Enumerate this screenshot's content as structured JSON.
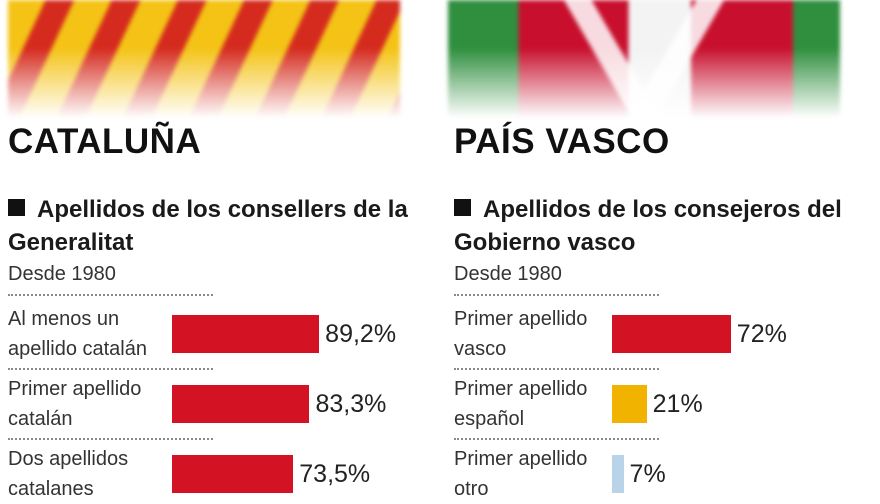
{
  "colors": {
    "catalan": "#d31224",
    "vasco": "#d31224",
    "espanol": "#f2b200",
    "otro": "#b9d4e8"
  },
  "left": {
    "region": "CATALUÑA",
    "subtitle": "Apellidos de los consellers de la Generalitat",
    "since": "Desde 1980",
    "labels": [
      [
        "Al menos un",
        "apellido catalán"
      ],
      [
        "Primer apellido",
        "catalán"
      ],
      [
        "Dos apellidos",
        "catalanes"
      ]
    ],
    "value_labels": [
      "89,2%",
      "83,3%",
      "73,5%"
    ]
  },
  "right": {
    "region": "PAÍS VASCO",
    "subtitle": "Apellidos de los consejeros del Gobierno vasco",
    "since": "Desde 1980",
    "labels": [
      [
        "Primer apellido",
        "vasco"
      ],
      [
        "Primer apellido",
        "español"
      ],
      [
        "Primer apellido",
        "otro"
      ]
    ],
    "value_labels": [
      "72%",
      "21%",
      "7%"
    ]
  },
  "chart_data": [
    {
      "type": "bar",
      "title": "CATALUÑA",
      "subtitle": "Apellidos de los consellers de la Generalitat",
      "note": "Desde 1980",
      "categories": [
        "Al menos un apellido catalán",
        "Primer apellido catalán",
        "Dos apellidos catalanes"
      ],
      "values": [
        89.2,
        83.3,
        73.5
      ],
      "unit": "%",
      "bar_colors": [
        "#d31224",
        "#d31224",
        "#d31224"
      ]
    },
    {
      "type": "bar",
      "title": "PAÍS VASCO",
      "subtitle": "Apellidos de los consejeros del Gobierno vasco",
      "note": "Desde 1980",
      "categories": [
        "Primer apellido vasco",
        "Primer apellido español",
        "Primer apellido otro"
      ],
      "values": [
        72,
        21,
        7
      ],
      "unit": "%",
      "bar_colors": [
        "#d31224",
        "#f2b200",
        "#b9d4e8"
      ]
    }
  ]
}
